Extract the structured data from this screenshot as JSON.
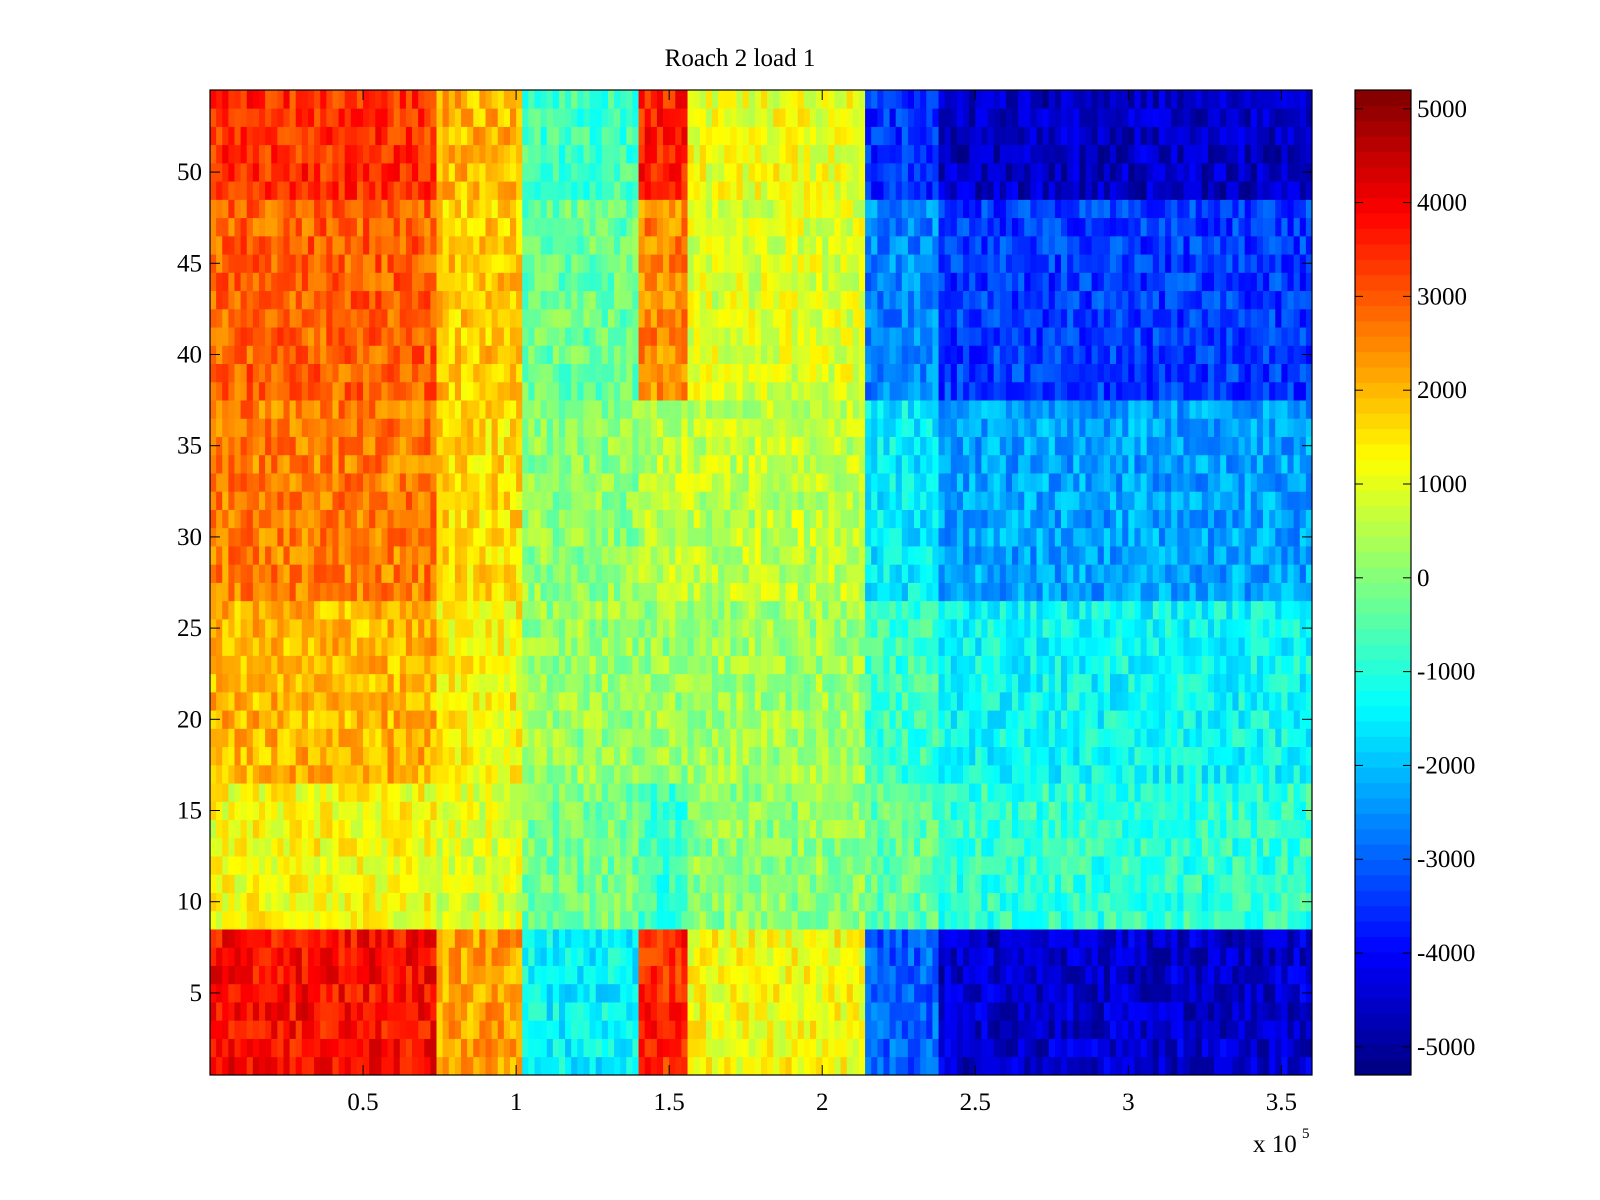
{
  "chart_data": {
    "type": "heatmap",
    "title": "Roach 2 load 1",
    "xlabel": "",
    "ylabel": "",
    "x_multiplier_label": "x 10",
    "x_multiplier_exponent": "5",
    "xlim": [
      0,
      3.6
    ],
    "ylim": [
      0.5,
      54.5
    ],
    "x_ticks": [
      0.5,
      1,
      1.5,
      2,
      2.5,
      3,
      3.5
    ],
    "x_tick_labels": [
      "0.5",
      "1",
      "1.5",
      "2",
      "2.5",
      "3",
      "3.5"
    ],
    "y_ticks": [
      5,
      10,
      15,
      20,
      25,
      30,
      35,
      40,
      45,
      50
    ],
    "y_tick_labels": [
      "5",
      "10",
      "15",
      "20",
      "25",
      "30",
      "35",
      "40",
      "45",
      "50"
    ],
    "colorbar": {
      "colormap": "jet",
      "clim": [
        -5300,
        5200
      ],
      "ticks": [
        5000,
        4000,
        3000,
        2000,
        1000,
        0,
        -1000,
        -2000,
        -3000,
        -4000,
        -5000
      ],
      "tick_labels": [
        "5000",
        "4000",
        "3000",
        "2000",
        "1000",
        "0",
        "-1000",
        "-2000",
        "-3000",
        "-4000",
        "-5000"
      ]
    },
    "rows": 54,
    "column_bands": [
      {
        "x_range": [
          0,
          0.75
        ],
        "value": 2700
      },
      {
        "x_range": [
          0.75,
          1.03
        ],
        "value": 1500
      },
      {
        "x_range": [
          1.03,
          1.4
        ],
        "value": -700
      },
      {
        "x_range": [
          1.4,
          1.57
        ],
        "value": 1600
      },
      {
        "x_range": [
          1.57,
          2.15
        ],
        "value": 800
      },
      {
        "x_range": [
          2.15,
          2.38
        ],
        "value": -1800
      },
      {
        "x_range": [
          2.38,
          3.6
        ],
        "value": -2800
      }
    ],
    "row_profiles": [
      {
        "y_range": [
          0.5,
          8.5
        ],
        "values": [
          3800,
          2200,
          -1400,
          3500,
          1200,
          -3000,
          -4500
        ]
      },
      {
        "y_range": [
          8.5,
          17
        ],
        "values": [
          1200,
          900,
          -200,
          -800,
          100,
          -400,
          -900
        ]
      },
      {
        "y_range": [
          17,
          27
        ],
        "values": [
          2000,
          1300,
          200,
          200,
          300,
          -800,
          -1300
        ]
      },
      {
        "y_range": [
          27,
          38
        ],
        "values": [
          2600,
          1600,
          100,
          600,
          600,
          -1500,
          -2300
        ]
      },
      {
        "y_range": [
          38,
          49
        ],
        "values": [
          2900,
          1800,
          -300,
          2500,
          900,
          -2600,
          -3400
        ]
      },
      {
        "y_range": [
          49,
          54.5
        ],
        "values": [
          3400,
          2000,
          -700,
          3600,
          1100,
          -3500,
          -4600
        ]
      }
    ]
  }
}
